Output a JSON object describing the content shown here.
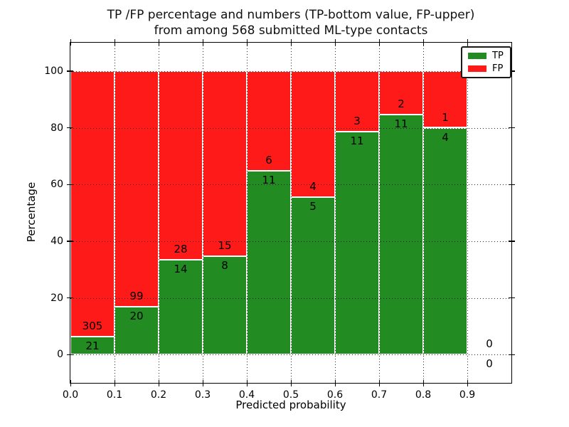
{
  "title": {
    "line1": "TP /FP percentage and numbers (TP-bottom value, FP-upper)",
    "line2": "from among 568 submitted ML-type contacts"
  },
  "chart_data": {
    "type": "bar",
    "stacked": true,
    "normalized_percent": true,
    "title": "TP /FP percentage and numbers (TP-bottom value, FP-upper)\nfrom among 568 submitted ML-type contacts",
    "xlabel": "Predicted probability",
    "ylabel": "Percentage",
    "xlim": [
      0,
      1.0
    ],
    "ylim": [
      -10,
      110
    ],
    "xtick_values": [
      0.0,
      0.1,
      0.2,
      0.3,
      0.4,
      0.5,
      0.6,
      0.7,
      0.8,
      0.9
    ],
    "xticks": [
      "0.0",
      "0.1",
      "0.2",
      "0.3",
      "0.4",
      "0.5",
      "0.6",
      "0.7",
      "0.8",
      "0.9"
    ],
    "ytick_values": [
      0,
      20,
      40,
      60,
      80,
      100
    ],
    "yticks": [
      "0",
      "20",
      "40",
      "60",
      "80",
      "100"
    ],
    "grid": true,
    "grid_style": "dotted",
    "legend_position": "upper right",
    "legend": [
      {
        "label": "TP",
        "color": "#228B22"
      },
      {
        "label": "FP",
        "color": "#FF1A1A"
      }
    ],
    "total_contacts": 568,
    "bins": [
      {
        "range": [
          0.0,
          0.1
        ],
        "tp": 21,
        "fp": 305
      },
      {
        "range": [
          0.1,
          0.2
        ],
        "tp": 20,
        "fp": 99
      },
      {
        "range": [
          0.2,
          0.3
        ],
        "tp": 14,
        "fp": 28
      },
      {
        "range": [
          0.3,
          0.4
        ],
        "tp": 8,
        "fp": 15
      },
      {
        "range": [
          0.4,
          0.5
        ],
        "tp": 11,
        "fp": 6
      },
      {
        "range": [
          0.5,
          0.6
        ],
        "tp": 5,
        "fp": 4
      },
      {
        "range": [
          0.6,
          0.7
        ],
        "tp": 11,
        "fp": 3
      },
      {
        "range": [
          0.7,
          0.8
        ],
        "tp": 11,
        "fp": 2
      },
      {
        "range": [
          0.8,
          0.9
        ],
        "tp": 4,
        "fp": 1
      },
      {
        "range": [
          0.9,
          1.0
        ],
        "tp": 0,
        "fp": 0
      }
    ]
  }
}
